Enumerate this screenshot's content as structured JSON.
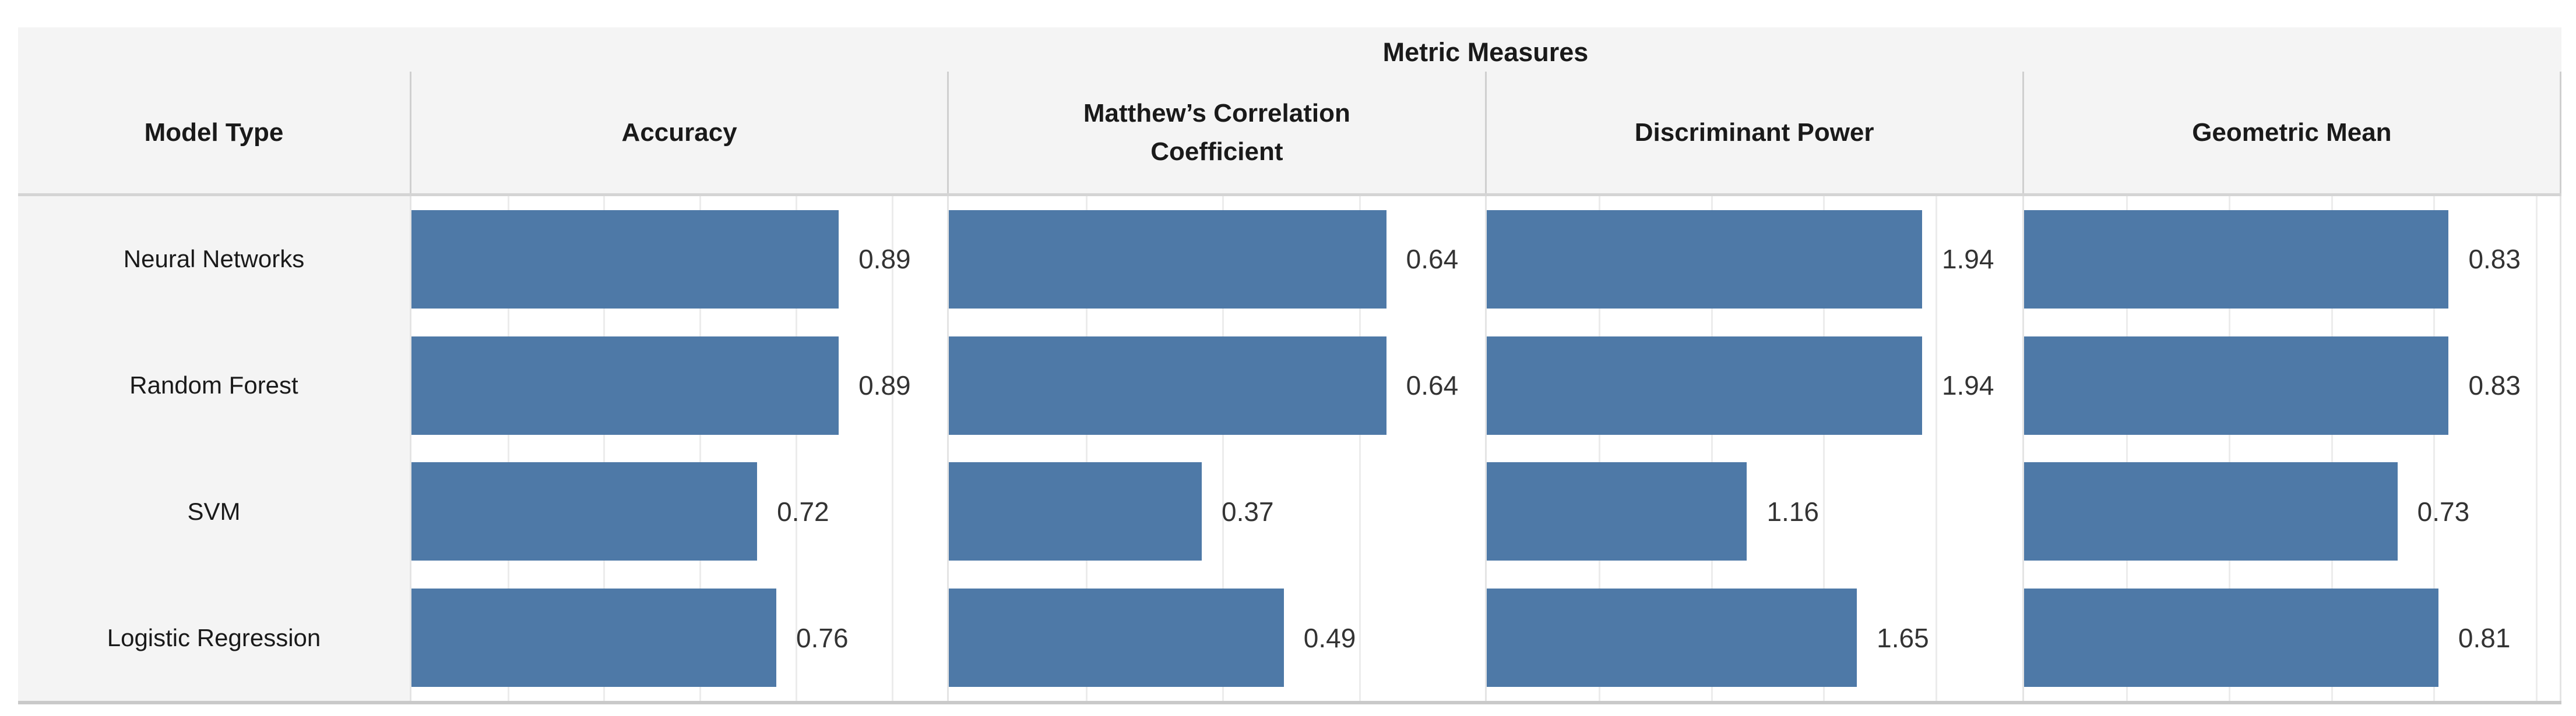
{
  "title": "Metric Measures",
  "row_header": "Model Type",
  "columns": [
    {
      "label": "Accuracy",
      "axis_max": 1.116,
      "gridline_values": [
        0.2,
        0.4,
        0.6,
        0.8,
        1.0
      ]
    },
    {
      "label": "Matthew’s Correlation Coefficient",
      "axis_max": 0.784,
      "gridline_values": [
        0.2,
        0.4,
        0.6
      ]
    },
    {
      "label": "Discriminant Power",
      "axis_max": 2.386,
      "gridline_values": [
        0.5,
        1.0,
        1.5,
        2.0
      ]
    },
    {
      "label": "Geometric Mean",
      "axis_max": 1.047,
      "gridline_values": [
        0.2,
        0.4,
        0.6,
        0.8,
        1.0
      ]
    }
  ],
  "rows": [
    {
      "model": "Neural Networks",
      "values": [
        0.89,
        0.64,
        1.94,
        0.83
      ],
      "labels": [
        "0.89",
        "0.64",
        "1.94",
        "0.83"
      ]
    },
    {
      "model": "Random Forest",
      "values": [
        0.89,
        0.64,
        1.94,
        0.83
      ],
      "labels": [
        "0.89",
        "0.64",
        "1.94",
        "0.83"
      ]
    },
    {
      "model": "SVM",
      "values": [
        0.72,
        0.37,
        1.16,
        0.73
      ],
      "labels": [
        "0.72",
        "0.37",
        "1.16",
        "0.73"
      ]
    },
    {
      "model": "Logistic Regression",
      "values": [
        0.76,
        0.49,
        1.65,
        0.81
      ],
      "labels": [
        "0.76",
        "0.49",
        "1.65",
        "0.81"
      ]
    }
  ],
  "colors": {
    "bar": "#4e79a7",
    "page_bg": "#ffffff",
    "header_bg": "#f4f4f4",
    "label_bg": "#f4f4f4",
    "text": "#1a1a1a",
    "value_text": "#333333",
    "gridline": "#ececec",
    "panel_divider": "#e4e4e4",
    "header_divider": "#cfcfcf",
    "header_underline": "#d4d4d4",
    "axis_line": "#c9c9c9"
  },
  "chart_data": {
    "type": "bar",
    "orientation": "horizontal",
    "title": "Metric Measures",
    "row_field_label": "Model Type",
    "categories": [
      "Neural Networks",
      "Random Forest",
      "SVM",
      "Logistic Regression"
    ],
    "series": [
      {
        "name": "Accuracy",
        "values": [
          0.89,
          0.89,
          0.72,
          0.76
        ]
      },
      {
        "name": "Matthew’s Correlation Coefficient",
        "values": [
          0.64,
          0.64,
          0.37,
          0.49
        ]
      },
      {
        "name": "Discriminant Power",
        "values": [
          1.94,
          1.94,
          1.16,
          1.65
        ]
      },
      {
        "name": "Geometric Mean",
        "values": [
          0.83,
          0.83,
          0.73,
          0.81
        ]
      }
    ],
    "bar_color": "#4e79a7",
    "data_labels": true,
    "legend": "none",
    "grid": true,
    "axis_ranges": {
      "Accuracy": [
        0,
        1.116
      ],
      "Matthew's Correlation Coefficient": [
        0,
        0.784
      ],
      "Discriminant Power": [
        0,
        2.386
      ],
      "Geometric Mean": [
        0,
        1.047
      ]
    }
  }
}
